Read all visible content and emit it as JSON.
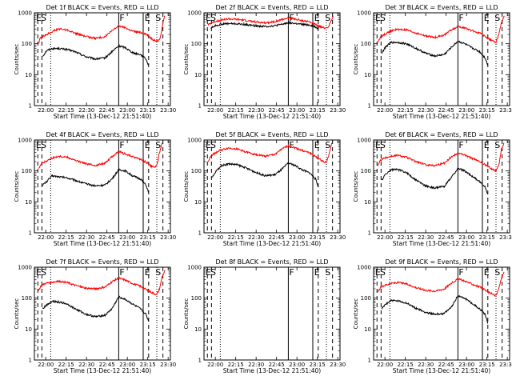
{
  "figure": {
    "xlabel": "Start Time (13-Dec-12 21:51:40)",
    "ylabel": "Counts/sec",
    "series_colors": {
      "events": "#000000",
      "lld": "#ff0000"
    },
    "x_ticks": [
      "22:00",
      "22:15",
      "22:30",
      "22:45",
      "23:00",
      "23:15",
      "23:30"
    ],
    "y_ticks": [
      "1",
      "10",
      "100",
      "1000"
    ],
    "x_tick_minutes": [
      8.33,
      23.33,
      38.33,
      53.33,
      68.33,
      83.33,
      98.33
    ],
    "y_scale": "log",
    "ylim": [
      1,
      1000
    ],
    "xlim_minutes": [
      0,
      100
    ],
    "marker_labels": {
      "E": "E",
      "S": "S",
      "F": "F"
    }
  },
  "chart_data": [
    {
      "type": "line",
      "title": "Det 1f BLACK = Events, RED = LLD",
      "markers": {
        "dashed": [
          2.5,
          5.5,
          84,
          94.5
        ],
        "dotted": [
          12,
          90
        ],
        "solid": [
          62,
          80
        ]
      },
      "series": [
        {
          "key": "events",
          "x": [
            6,
            7,
            9,
            13,
            18,
            24,
            30,
            38,
            45,
            52,
            57,
            62,
            67,
            70,
            73,
            78,
            80,
            82,
            84
          ],
          "y": [
            40,
            45,
            60,
            70,
            70,
            65,
            55,
            38,
            32,
            35,
            55,
            85,
            75,
            60,
            50,
            45,
            38,
            32,
            20
          ]
        },
        {
          "key": "lld",
          "x": [
            3,
            4,
            6,
            9,
            13,
            18,
            24,
            30,
            38,
            45,
            52,
            57,
            62,
            67,
            70,
            73,
            78,
            82,
            86,
            88,
            90,
            92,
            93,
            94,
            95,
            96
          ],
          "y": [
            100,
            140,
            170,
            200,
            250,
            300,
            280,
            220,
            170,
            150,
            170,
            260,
            380,
            330,
            280,
            250,
            230,
            210,
            150,
            130,
            120,
            130,
            200,
            350,
            600,
            800
          ]
        }
      ]
    },
    {
      "type": "line",
      "title": "Det 2f BLACK = Events, RED = LLD",
      "markers": {
        "dashed": [
          2.5,
          5.5,
          84,
          94.5
        ],
        "dotted": [
          12,
          90
        ],
        "solid": [
          62,
          80
        ]
      },
      "series": [
        {
          "key": "events",
          "x": [
            5,
            8,
            13,
            18,
            24,
            30,
            38,
            45,
            52,
            57,
            62,
            67,
            72,
            78,
            82,
            84
          ],
          "y": [
            320,
            380,
            430,
            450,
            440,
            420,
            380,
            360,
            380,
            420,
            480,
            450,
            420,
            400,
            350,
            300
          ]
        },
        {
          "key": "lld",
          "x": [
            3,
            6,
            10,
            14,
            18,
            24,
            30,
            38,
            45,
            52,
            57,
            62,
            67,
            72,
            78,
            84,
            88,
            91,
            93,
            95
          ],
          "y": [
            420,
            480,
            550,
            600,
            630,
            610,
            570,
            510,
            470,
            520,
            600,
            680,
            620,
            560,
            500,
            380,
            330,
            320,
            500,
            800
          ]
        }
      ]
    },
    {
      "type": "line",
      "title": "Det 3f BLACK = Events, RED = LLD",
      "markers": {
        "dashed": [
          2.5,
          5.5,
          84,
          94.5
        ],
        "dotted": [
          12,
          90
        ],
        "solid": [
          62,
          80
        ]
      },
      "series": [
        {
          "key": "events",
          "x": [
            6,
            9,
            13,
            18,
            24,
            30,
            38,
            45,
            52,
            57,
            62,
            67,
            72,
            78,
            82,
            84
          ],
          "y": [
            50,
            80,
            110,
            110,
            100,
            75,
            50,
            40,
            45,
            75,
            120,
            100,
            75,
            55,
            35,
            20
          ]
        },
        {
          "key": "lld",
          "x": [
            3,
            5,
            8,
            13,
            18,
            24,
            30,
            38,
            45,
            52,
            57,
            62,
            67,
            72,
            78,
            84,
            88,
            90,
            92,
            94,
            96
          ],
          "y": [
            110,
            160,
            200,
            260,
            290,
            280,
            230,
            180,
            160,
            190,
            280,
            360,
            320,
            270,
            220,
            150,
            120,
            110,
            200,
            450,
            800
          ]
        }
      ]
    },
    {
      "type": "line",
      "title": "Det 4f BLACK = Events, RED = LLD",
      "markers": {
        "dashed": [
          2.5,
          5.5,
          84,
          94.5
        ],
        "dotted": [
          12,
          90
        ],
        "solid": [
          62,
          80
        ]
      },
      "series": [
        {
          "key": "events",
          "x": [
            6,
            9,
            13,
            18,
            24,
            30,
            38,
            45,
            52,
            57,
            62,
            67,
            72,
            78,
            82,
            84
          ],
          "y": [
            35,
            45,
            70,
            65,
            60,
            50,
            38,
            33,
            35,
            55,
            110,
            100,
            70,
            55,
            35,
            20
          ]
        },
        {
          "key": "lld",
          "x": [
            3,
            5,
            8,
            13,
            18,
            24,
            30,
            38,
            45,
            52,
            57,
            62,
            67,
            72,
            78,
            84,
            86,
            88,
            90,
            92,
            94
          ],
          "y": [
            120,
            170,
            200,
            260,
            300,
            280,
            220,
            170,
            150,
            180,
            290,
            420,
            350,
            290,
            240,
            170,
            140,
            130,
            150,
            400,
            800
          ]
        }
      ]
    },
    {
      "type": "line",
      "title": "Det 5f BLACK = Events, RED = LLD",
      "markers": {
        "dashed": [
          2.5,
          5.5,
          84,
          94.5
        ],
        "dotted": [
          12,
          90
        ],
        "solid": [
          62,
          80
        ]
      },
      "series": [
        {
          "key": "events",
          "x": [
            6,
            9,
            13,
            18,
            24,
            30,
            38,
            45,
            52,
            57,
            62,
            67,
            72,
            78,
            82,
            84
          ],
          "y": [
            60,
            100,
            150,
            170,
            160,
            130,
            90,
            70,
            75,
            110,
            180,
            150,
            110,
            85,
            55,
            30
          ]
        },
        {
          "key": "lld",
          "x": [
            3,
            5,
            8,
            13,
            18,
            24,
            30,
            38,
            45,
            52,
            57,
            62,
            67,
            72,
            78,
            84,
            88,
            90,
            92,
            94
          ],
          "y": [
            200,
            300,
            380,
            480,
            550,
            520,
            420,
            340,
            300,
            340,
            500,
            650,
            560,
            460,
            380,
            250,
            200,
            190,
            350,
            800
          ]
        }
      ]
    },
    {
      "type": "line",
      "title": "Det 6f BLACK = Events, RED = LLD",
      "markers": {
        "dashed": [
          2.5,
          5.5,
          84,
          94.5
        ],
        "dotted": [
          12,
          90
        ],
        "solid": [
          62,
          80
        ]
      },
      "series": [
        {
          "key": "events",
          "x": [
            6,
            9,
            13,
            18,
            24,
            30,
            38,
            45,
            52,
            57,
            62,
            67,
            72,
            78,
            82,
            84
          ],
          "y": [
            50,
            80,
            110,
            110,
            90,
            55,
            33,
            28,
            32,
            60,
            120,
            100,
            70,
            45,
            30,
            18
          ]
        },
        {
          "key": "lld",
          "x": [
            3,
            5,
            8,
            13,
            18,
            24,
            30,
            38,
            45,
            52,
            57,
            62,
            67,
            72,
            78,
            84,
            88,
            90,
            92,
            94,
            96
          ],
          "y": [
            150,
            220,
            260,
            300,
            320,
            280,
            210,
            160,
            150,
            180,
            280,
            380,
            330,
            260,
            200,
            140,
            110,
            100,
            150,
            500,
            800
          ]
        }
      ]
    },
    {
      "type": "line",
      "title": "Det 7f BLACK = Events, RED = LLD",
      "markers": {
        "dashed": [
          2.5,
          5.5,
          84,
          94.5
        ],
        "dotted": [
          12,
          90
        ],
        "solid": [
          62,
          80
        ]
      },
      "series": [
        {
          "key": "events",
          "x": [
            6,
            9,
            13,
            18,
            24,
            30,
            38,
            45,
            52,
            57,
            62,
            67,
            72,
            78,
            82,
            84
          ],
          "y": [
            45,
            60,
            80,
            75,
            65,
            45,
            30,
            25,
            28,
            45,
            110,
            90,
            65,
            45,
            30,
            18
          ]
        },
        {
          "key": "lld",
          "x": [
            3,
            5,
            8,
            13,
            18,
            24,
            30,
            38,
            45,
            52,
            57,
            62,
            67,
            72,
            78,
            84,
            88,
            90,
            92,
            94,
            96
          ],
          "y": [
            180,
            250,
            300,
            330,
            350,
            320,
            260,
            210,
            200,
            230,
            340,
            450,
            380,
            300,
            240,
            170,
            140,
            130,
            200,
            500,
            800
          ]
        }
      ]
    },
    {
      "type": "line",
      "title": "Det 8f BLACK = Events, RED = LLD",
      "markers": {
        "dashed": [
          2.5,
          5.5,
          84,
          94.5
        ],
        "dotted": [
          12,
          90
        ],
        "solid": [
          62,
          80
        ]
      },
      "series": []
    },
    {
      "type": "line",
      "title": "Det 9f BLACK = Events, RED = LLD",
      "markers": {
        "dashed": [
          2.5,
          5.5,
          84,
          94.5
        ],
        "dotted": [
          12,
          90
        ],
        "solid": [
          62,
          80
        ]
      },
      "series": [
        {
          "key": "events",
          "x": [
            6,
            9,
            13,
            18,
            24,
            30,
            38,
            45,
            52,
            57,
            62,
            67,
            72,
            78,
            82,
            84
          ],
          "y": [
            45,
            65,
            85,
            80,
            70,
            50,
            35,
            30,
            32,
            50,
            120,
            100,
            70,
            45,
            30,
            15
          ]
        },
        {
          "key": "lld",
          "x": [
            3,
            5,
            8,
            13,
            18,
            24,
            30,
            38,
            45,
            52,
            57,
            62,
            67,
            72,
            78,
            84,
            88,
            90,
            92,
            94,
            96
          ],
          "y": [
            150,
            220,
            260,
            300,
            320,
            290,
            230,
            180,
            170,
            200,
            300,
            420,
            360,
            290,
            230,
            160,
            130,
            120,
            200,
            450,
            700
          ]
        }
      ]
    }
  ]
}
